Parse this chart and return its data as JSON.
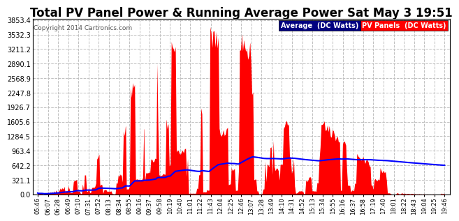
{
  "title": "Total PV Panel Power & Running Average Power Sat May 3 19:51",
  "copyright": "Copyright 2014 Cartronics.com",
  "legend_avg": "Average  (DC Watts)",
  "legend_pv": "PV Panels  (DC Watts)",
  "ymin": 0.0,
  "ymax": 3853.4,
  "yticks": [
    0.0,
    321.1,
    642.2,
    963.4,
    1284.5,
    1605.6,
    1926.7,
    2247.8,
    2568.9,
    2890.1,
    3211.2,
    3532.3,
    3853.4
  ],
  "bg_color": "#ffffff",
  "plot_bg_color": "#ffffff",
  "bar_color": "#ff0000",
  "avg_color": "#0000ff",
  "grid_color": "#c0c0c0",
  "title_fontsize": 12,
  "legend_avg_bg": "#000080",
  "legend_pv_bg": "#ff0000",
  "xtick_labels": [
    "05:46",
    "06:07",
    "06:28",
    "06:49",
    "07:10",
    "07:31",
    "07:52",
    "08:13",
    "08:34",
    "08:55",
    "09:16",
    "09:37",
    "09:58",
    "10:19",
    "10:40",
    "11:01",
    "11:22",
    "11:43",
    "12:04",
    "12:25",
    "12:46",
    "13:07",
    "13:28",
    "13:49",
    "14:10",
    "14:31",
    "14:52",
    "15:13",
    "15:34",
    "15:55",
    "16:16",
    "16:37",
    "16:58",
    "17:19",
    "17:40",
    "18:01",
    "18:22",
    "18:43",
    "19:04",
    "19:25",
    "19:46"
  ]
}
